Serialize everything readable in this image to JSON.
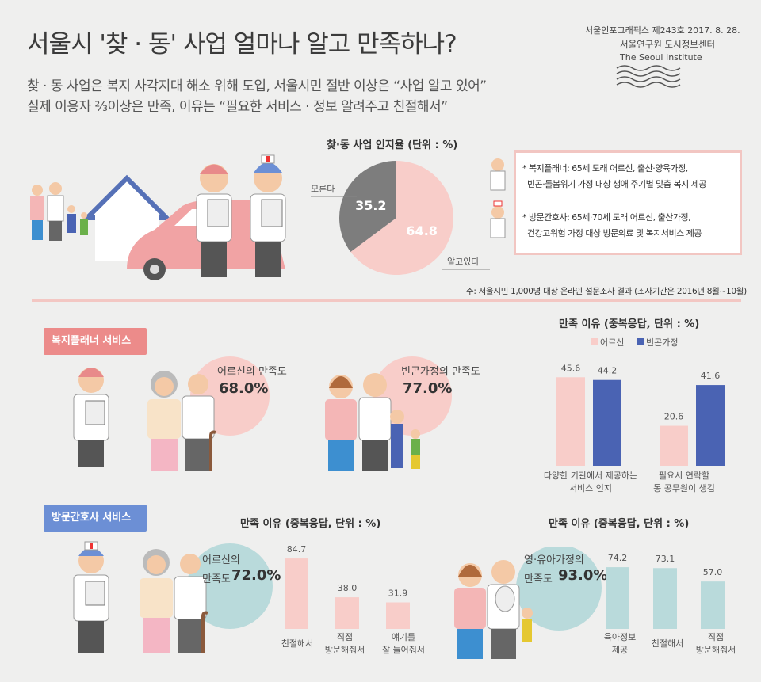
{
  "header": {
    "title": "서울시 '찾 · 동' 사업 얼마나 알고 만족하나?",
    "subtitle_1": "찾 · 동 사업은 복지 사각지대 해소 위해 도입, 서울시민 절반 이상은 “사업 알고 있어”",
    "subtitle_2": "실제 이용자 ⅔이상은 만족, 이유는 “필요한 서비스 · 정보 알려주고 친절해서”",
    "publication": "서울인포그래픽스 제243호 2017. 8. 28.",
    "institute_kr": "서울연구원 도시정보센터",
    "institute_en": "The Seoul Institute"
  },
  "awareness": {
    "title": "찾·동 사업 인지율 (단위 : %)",
    "label_unknown": "모른다",
    "label_known": "알고있다",
    "source": "주: 서울시민 1,000명 대상 온라인 설문조사 결과 (조사기간은 2016년 8월~10월)"
  },
  "definitions": {
    "planner_1": "* 복지플래너: 65세 도래 어르신, 출산·양육가정,",
    "planner_2": "빈곤·돌봄위기 가정 대상 생애 주기별 맞춤 복지 제공",
    "nurse_1": "* 방문간호사: 65세·70세 도래 어르신, 출산가정,",
    "nurse_2": "건강고위험 가정 대상 방문의료 및 복지서비스 제공"
  },
  "planner": {
    "tag": "복지플래너 서비스",
    "elder_label": "어르신의  만족도",
    "elder_value": "68.0%",
    "poor_label": "빈곤가정의 만족도",
    "poor_value": "77.0%",
    "reason_title": "만족 이유 (중복응답, 단위 : %)",
    "legend_elder": "어르신",
    "legend_poor": "빈곤가정",
    "cat1_l1": "다양한 기관에서 제공하는",
    "cat1_l2": "서비스 인지",
    "cat2_l1": "필요시 연락할",
    "cat2_l2": "동 공무원이 생김",
    "v1a": "45.6",
    "v1b": "44.2",
    "v2a": "20.6",
    "v2b": "41.6"
  },
  "nurse": {
    "tag": "방문간호사 서비스",
    "elder_label_1": "어르신의",
    "elder_label_2": "만족도",
    "elder_value": "72.0%",
    "infant_label_1": "영·유아가정의",
    "infant_label_2": "만족도",
    "infant_value": "93.0%",
    "reason_title_elder": "만족 이유 (중복응답, 단위 : %)",
    "reason_title_infant": "만족 이유 (중복응답, 단위 : %)",
    "e_v1": "84.7",
    "e_v2": "38.0",
    "e_v3": "31.9",
    "e_c1": "친절해서",
    "e_c2a": "직접",
    "e_c2b": "방문해줘서",
    "e_c3a": "얘기를",
    "e_c3b": "잘 들어줘서",
    "i_v1": "74.2",
    "i_v2": "73.1",
    "i_v3": "57.0",
    "i_c1a": "육아정보",
    "i_c1b": "제공",
    "i_c2": "친절해서",
    "i_c3a": "직접",
    "i_c3b": "방문해줘서"
  },
  "colors": {
    "pink": "#f8cdc9",
    "blue": "#4a63b3",
    "teal": "#b9dadb",
    "gray": "#7d7d7d",
    "tag_pink": "#ec8b8a",
    "tag_blue": "#6c8fd5"
  },
  "chart_data": [
    {
      "type": "pie",
      "title": "찾·동 사업 인지율 (단위 : %)",
      "categories": [
        "알고있다",
        "모른다"
      ],
      "values": [
        64.8,
        35.2
      ]
    },
    {
      "type": "bar",
      "title": "만족 이유 (중복응답, 단위 : %)",
      "categories": [
        "다양한 기관에서 제공하는 서비스 인지",
        "필요시 연락할 동 공무원이 생김"
      ],
      "series": [
        {
          "name": "어르신",
          "values": [
            45.6,
            20.6
          ]
        },
        {
          "name": "빈곤가정",
          "values": [
            44.2,
            41.6
          ]
        }
      ]
    },
    {
      "type": "bar",
      "title": "만족 이유 (중복응답, 단위 : %)",
      "categories": [
        "친절해서",
        "직접 방문해줘서",
        "얘기를 잘 들어줘서"
      ],
      "values": [
        84.7,
        38.0,
        31.9
      ]
    },
    {
      "type": "bar",
      "title": "만족 이유 (중복응답, 단위 : %)",
      "categories": [
        "육아정보 제공",
        "친절해서",
        "직접 방문해줘서"
      ],
      "values": [
        74.2,
        73.1,
        57.0
      ]
    }
  ]
}
